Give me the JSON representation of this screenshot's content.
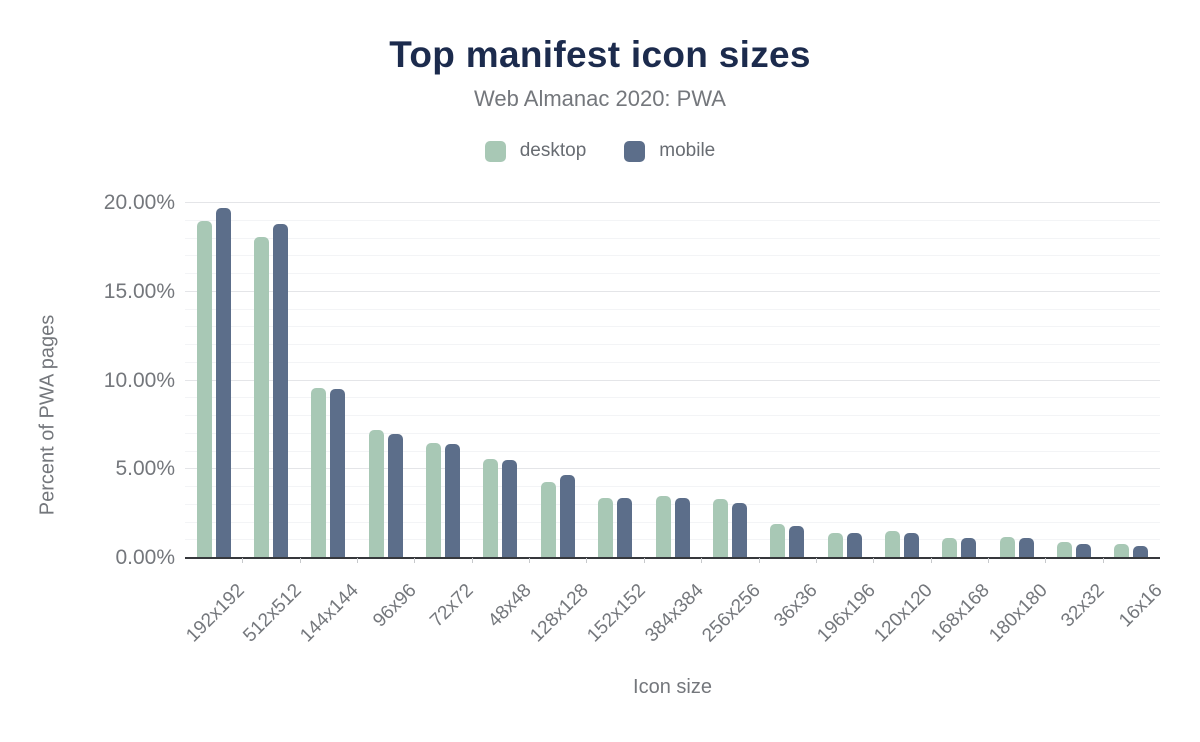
{
  "header": {
    "title": "Top manifest icon sizes",
    "subtitle": "Web Almanac 2020: PWA"
  },
  "legend": [
    {
      "label": "desktop",
      "color": "#a8c8b5"
    },
    {
      "label": "mobile",
      "color": "#5c6e8a"
    }
  ],
  "colors": {
    "title": "#1c2b4d",
    "text": "#74777c",
    "legend_text": "#686c72",
    "grid_major": "#e4e5e8",
    "grid_minor": "#f3f4f6",
    "baseline": "#36383c",
    "desktop": "#a8c8b5",
    "mobile": "#5c6e8a",
    "bg": "#ffffff"
  },
  "chart_data": {
    "type": "bar",
    "title": "Top manifest icon sizes",
    "subtitle": "Web Almanac 2020: PWA",
    "xlabel": "Icon size",
    "ylabel": "Percent of PWA pages",
    "ylim": [
      0,
      20
    ],
    "grid": true,
    "gridline_minor_step": 1,
    "gridline_major_step": 5,
    "legend_position": "top",
    "bar_corner_radius": "rounded-top",
    "categories": [
      "192x192",
      "512x512",
      "144x144",
      "96x96",
      "72x72",
      "48x48",
      "128x128",
      "152x152",
      "384x384",
      "256x256",
      "36x36",
      "196x196",
      "120x120",
      "168x168",
      "180x180",
      "32x32",
      "16x16"
    ],
    "yticks": [
      {
        "value": 0,
        "label": "0.00%"
      },
      {
        "value": 5,
        "label": "5.00%"
      },
      {
        "value": 10,
        "label": "10.00%"
      },
      {
        "value": 15,
        "label": "15.00%"
      },
      {
        "value": 20,
        "label": "20.00%"
      }
    ],
    "series": [
      {
        "name": "desktop",
        "color": "#a8c8b5",
        "unit": "%",
        "values": [
          19.0,
          18.1,
          9.6,
          7.2,
          6.5,
          5.6,
          4.3,
          3.4,
          3.5,
          3.3,
          1.9,
          1.4,
          1.5,
          1.1,
          1.2,
          0.9,
          0.8
        ]
      },
      {
        "name": "mobile",
        "color": "#5c6e8a",
        "unit": "%",
        "values": [
          19.7,
          18.8,
          9.5,
          7.0,
          6.4,
          5.5,
          4.7,
          3.4,
          3.4,
          3.1,
          1.8,
          1.4,
          1.4,
          1.1,
          1.1,
          0.8,
          0.7
        ]
      }
    ]
  }
}
